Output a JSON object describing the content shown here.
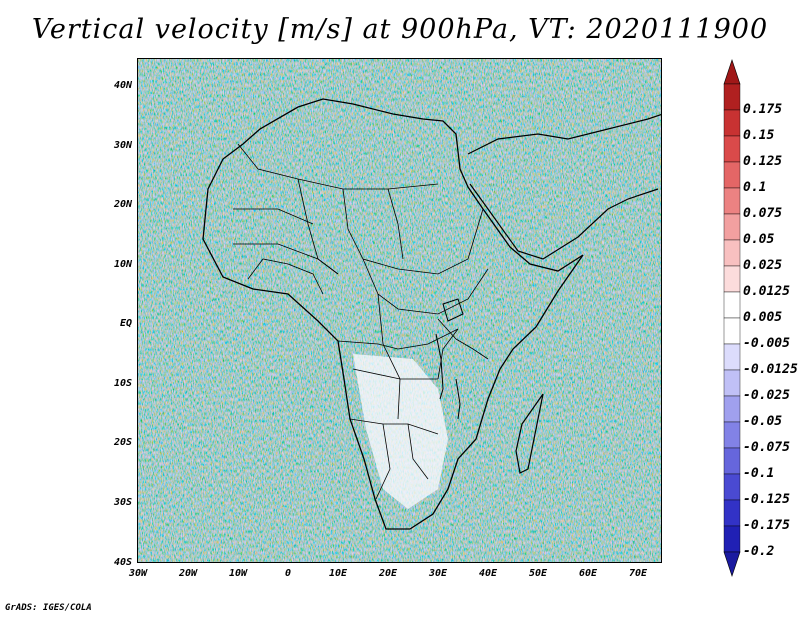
{
  "title": "Vertical velocity [m/s] at 900hPa, VT: 2020111900",
  "map": {
    "region": "Africa",
    "lat_labels": [
      "40N",
      "30N",
      "20N",
      "10N",
      "EQ",
      "10S",
      "20S",
      "30S",
      "40S"
    ],
    "lon_labels": [
      "30W",
      "20W",
      "10W",
      "0",
      "10E",
      "20E",
      "30E",
      "40E",
      "50E",
      "60E",
      "70E"
    ]
  },
  "colorbar": {
    "labels": [
      "0.175",
      "0.15",
      "0.125",
      "0.1",
      "0.075",
      "0.05",
      "0.025",
      "0.0125",
      "0.005",
      "-0.005",
      "-0.0125",
      "-0.025",
      "-0.05",
      "-0.075",
      "-0.1",
      "-0.125",
      "-0.175",
      "-0.2"
    ],
    "colors": [
      "#b02020",
      "#c83232",
      "#da4a4a",
      "#e46666",
      "#ec8282",
      "#f2a0a0",
      "#f8c0c0",
      "#fcdcdc",
      "#ffffff",
      "#ffffff",
      "#dcdcfc",
      "#c0c0f6",
      "#a0a0ee",
      "#8282e6",
      "#6666dc",
      "#4a4ad2",
      "#3232c6",
      "#2020b4"
    ],
    "top_arrow_color": "#a01818",
    "bottom_arrow_color": "#1a1aa0"
  },
  "footer": "GrADS: IGES/COLA"
}
